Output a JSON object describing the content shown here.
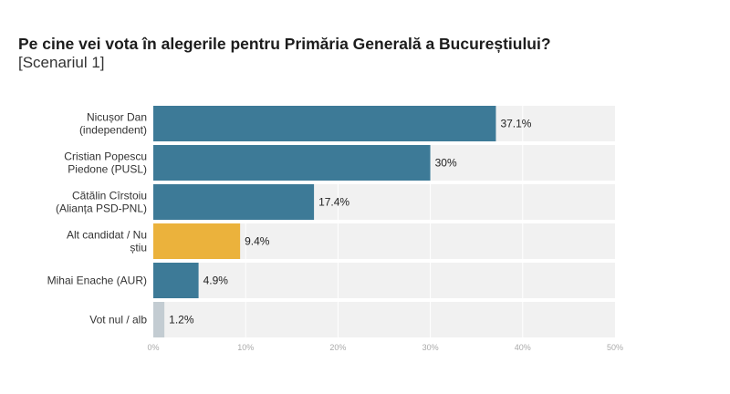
{
  "header": {
    "title": "Pe cine vei vota în alegerile pentru Primăria Generală a Bucureștiului?",
    "subtitle": "[Scenariul 1]"
  },
  "chart_data": {
    "type": "bar",
    "orientation": "horizontal",
    "title": "Pe cine vei vota în alegerile pentru Primăria Generală a Bucureștiului?",
    "subtitle": "[Scenariul 1]",
    "categories": [
      [
        "Nicușor Dan",
        "(independent)"
      ],
      [
        "Cristian Popescu",
        "Piedone (PUSL)"
      ],
      [
        "Cătălin Cîrstoiu",
        "(Alianța PSD-PNL)"
      ],
      [
        "Alt candidat / Nu",
        "știu"
      ],
      [
        "Mihai Enache (AUR)"
      ],
      [
        "Vot nul / alb"
      ]
    ],
    "values": [
      37.1,
      30,
      17.4,
      9.4,
      4.9,
      1.2
    ],
    "value_labels": [
      "37.1%",
      "30%",
      "17.4%",
      "9.4%",
      "4.9%",
      "1.2%"
    ],
    "bar_colors": [
      "#3d7a97",
      "#3d7a97",
      "#3d7a97",
      "#ebb23c",
      "#3d7a97",
      "#c3ccd2"
    ],
    "background_color": "#f1f1f1",
    "xlim": [
      0,
      50
    ],
    "xticks": [
      0,
      10,
      20,
      30,
      40,
      50
    ],
    "xtick_labels": [
      "0%",
      "10%",
      "20%",
      "30%",
      "40%",
      "50%"
    ],
    "xlabel": "",
    "ylabel": "",
    "grid": true
  }
}
